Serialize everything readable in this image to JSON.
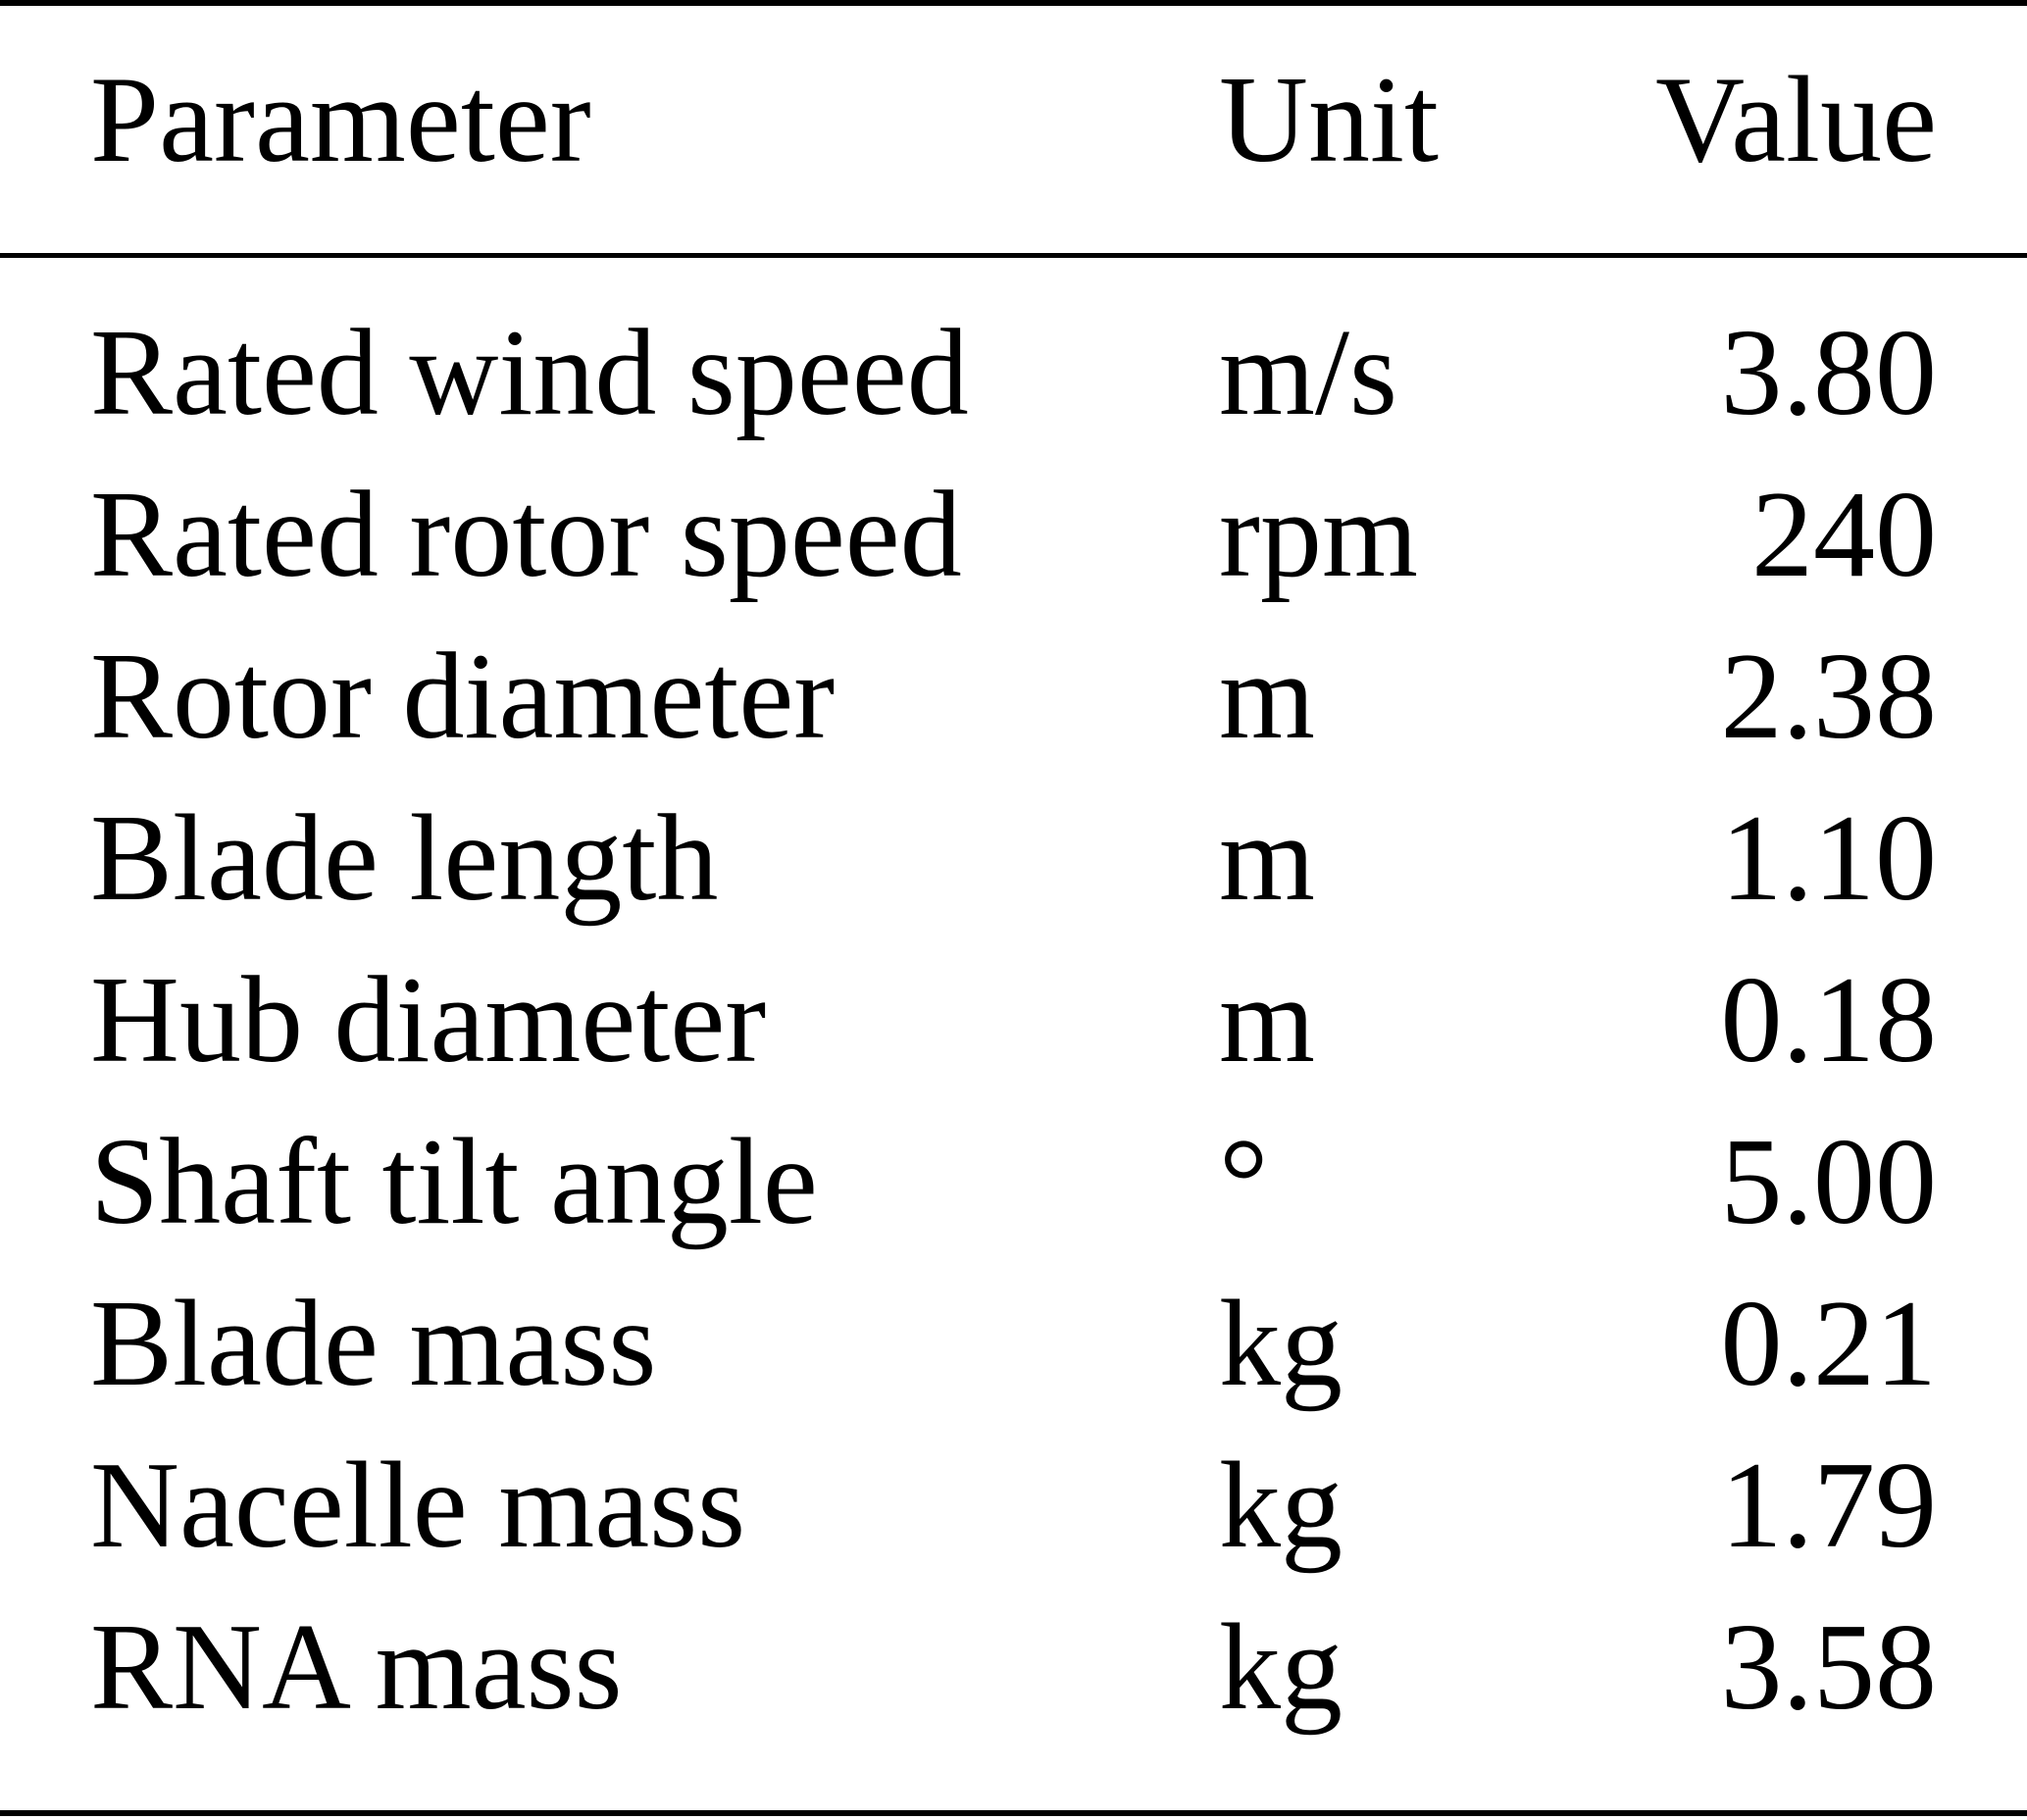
{
  "table": {
    "headers": {
      "parameter": "Parameter",
      "unit": "Unit",
      "value": "Value"
    },
    "rows": [
      {
        "parameter": "Rated wind speed",
        "unit": "m/s",
        "value": "3.80"
      },
      {
        "parameter": "Rated rotor speed",
        "unit": "rpm",
        "value": "240"
      },
      {
        "parameter": "Rotor diameter",
        "unit": "m",
        "value": "2.38"
      },
      {
        "parameter": "Blade length",
        "unit": "m",
        "value": "1.10"
      },
      {
        "parameter": "Hub diameter",
        "unit": "m",
        "value": "0.18"
      },
      {
        "parameter": "Shaft tilt angle",
        "unit": "°",
        "value": "5.00"
      },
      {
        "parameter": "Blade mass",
        "unit": "kg",
        "value": "0.21"
      },
      {
        "parameter": "Nacelle mass",
        "unit": "kg",
        "value": "1.79"
      },
      {
        "parameter": "RNA mass",
        "unit": "kg",
        "value": "3.58"
      }
    ]
  }
}
